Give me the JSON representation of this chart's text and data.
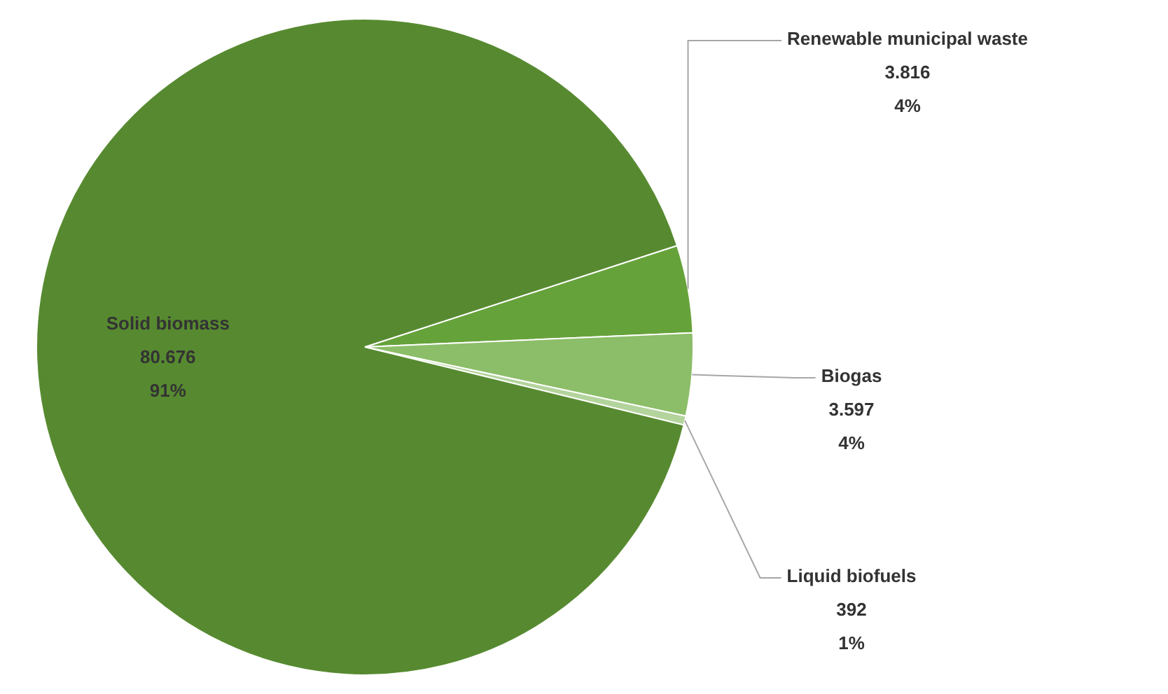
{
  "chart_data": {
    "type": "pie",
    "categories": [
      "Renewable municipal waste",
      "Biogas",
      "Liquid biofuels",
      "Solid biomass"
    ],
    "values": [
      3816,
      3597,
      392,
      80676
    ],
    "colors": [
      "#66a23a",
      "#8cbd68",
      "#b3d49c",
      "#578a30"
    ],
    "value_labels": [
      "3.816\n4%",
      "3.597\n4%",
      "392\n1%",
      "80.676\n91%"
    ],
    "legend": false
  }
}
